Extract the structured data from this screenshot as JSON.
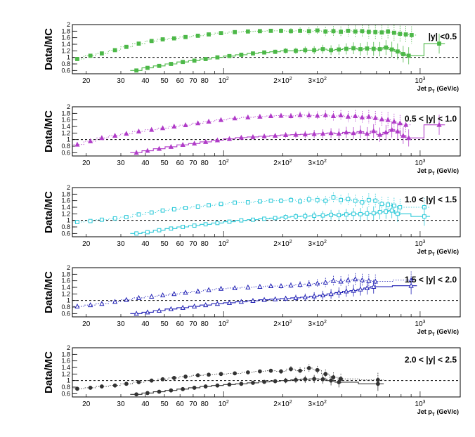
{
  "chart_data": [
    {
      "type": "scatter",
      "title": "|y| <0.5",
      "ylabel": "Data/MC",
      "xlabel": "Jet p",
      "xlabel_sub": "T",
      "xlabel_unit": "(GeV/c)",
      "xscale": "log",
      "xlim": [
        17,
        1600
      ],
      "ylim": [
        0.5,
        2.0
      ],
      "reference_line": 1.0,
      "color": "#4db848",
      "marker": "filled-square",
      "x_tick_labels": [
        "20",
        "30",
        "40",
        "50",
        "60",
        "70",
        "80",
        "10",
        "2",
        "2×10",
        "2",
        "3×10",
        "2",
        "10",
        "3"
      ],
      "y_tick_labels": [
        "0.6",
        "0.8",
        "1",
        "1.2",
        "1.4",
        "1.6",
        "1.8",
        "2"
      ],
      "series": [
        {
          "style": "dotted",
          "x": [
            18,
            21,
            24,
            28,
            32,
            37,
            43,
            49,
            56,
            64,
            74,
            84,
            97,
            114,
            133,
            153,
            174,
            196,
            220,
            245,
            272,
            300,
            330,
            362,
            395,
            430,
            468,
            507,
            548,
            592,
            638,
            686,
            737,
            790,
            846,
            905
          ],
          "y": [
            0.95,
            1.05,
            1.12,
            1.22,
            1.32,
            1.42,
            1.5,
            1.55,
            1.58,
            1.62,
            1.66,
            1.7,
            1.74,
            1.77,
            1.79,
            1.8,
            1.81,
            1.81,
            1.8,
            1.81,
            1.8,
            1.82,
            1.79,
            1.8,
            1.78,
            1.81,
            1.79,
            1.8,
            1.78,
            1.77,
            1.76,
            1.79,
            1.75,
            1.72,
            1.7,
            1.68
          ]
        },
        {
          "style": "solid",
          "x": [
            36,
            41,
            47,
            54,
            62,
            71,
            81,
            93,
            107,
            123,
            141,
            161,
            183,
            207,
            233,
            260,
            289,
            320,
            352,
            386,
            421,
            458,
            497,
            537,
            580,
            624,
            670,
            718,
            768,
            820,
            875,
            1250
          ],
          "y": [
            0.6,
            0.68,
            0.74,
            0.8,
            0.86,
            0.9,
            0.95,
            1.0,
            1.04,
            1.08,
            1.12,
            1.15,
            1.17,
            1.2,
            1.2,
            1.22,
            1.22,
            1.25,
            1.22,
            1.24,
            1.26,
            1.28,
            1.25,
            1.27,
            1.26,
            1.25,
            1.3,
            1.24,
            1.18,
            1.1,
            1.05,
            1.42
          ]
        }
      ]
    },
    {
      "type": "scatter",
      "title": "0.5 < |y| < 1.0",
      "ylabel": "Data/MC",
      "xlabel": "Jet p",
      "xlabel_sub": "T",
      "xlabel_unit": "(GeV/c)",
      "xscale": "log",
      "xlim": [
        17,
        1600
      ],
      "ylim": [
        0.5,
        2.0
      ],
      "reference_line": 1.0,
      "color": "#b03cc8",
      "marker": "filled-triangle",
      "x_tick_labels": [
        "20",
        "30",
        "40",
        "50",
        "60",
        "70",
        "80",
        "10",
        "2",
        "2×10",
        "2",
        "3×10",
        "2",
        "10",
        "3"
      ],
      "y_tick_labels": [
        "0.6",
        "0.8",
        "1",
        "1.2",
        "1.4",
        "1.6",
        "1.8",
        "2"
      ],
      "series": [
        {
          "style": "dotted",
          "x": [
            18,
            21,
            24,
            28,
            32,
            37,
            43,
            49,
            56,
            64,
            74,
            84,
            97,
            114,
            133,
            153,
            174,
            196,
            220,
            245,
            272,
            300,
            330,
            362,
            395,
            430,
            468,
            507,
            548,
            592,
            638,
            686,
            737,
            790,
            846
          ],
          "y": [
            0.85,
            0.95,
            1.05,
            1.12,
            1.18,
            1.25,
            1.3,
            1.35,
            1.4,
            1.44,
            1.5,
            1.55,
            1.6,
            1.65,
            1.68,
            1.7,
            1.72,
            1.73,
            1.72,
            1.75,
            1.74,
            1.73,
            1.75,
            1.72,
            1.74,
            1.7,
            1.72,
            1.68,
            1.7,
            1.66,
            1.62,
            1.6,
            1.55,
            1.5,
            1.45
          ]
        },
        {
          "style": "solid",
          "x": [
            36,
            41,
            47,
            54,
            62,
            71,
            81,
            93,
            107,
            123,
            141,
            161,
            183,
            207,
            233,
            260,
            289,
            320,
            352,
            386,
            421,
            458,
            497,
            537,
            580,
            624,
            670,
            718,
            768,
            820,
            875,
            1250
          ],
          "y": [
            0.6,
            0.66,
            0.72,
            0.78,
            0.84,
            0.88,
            0.93,
            0.98,
            1.02,
            1.06,
            1.08,
            1.1,
            1.12,
            1.14,
            1.15,
            1.16,
            1.17,
            1.18,
            1.2,
            1.18,
            1.22,
            1.2,
            1.24,
            1.18,
            1.26,
            1.15,
            1.22,
            1.3,
            1.25,
            1.12,
            1.05,
            1.45
          ]
        }
      ]
    },
    {
      "type": "scatter",
      "title": "1.0 < |y| < 1.5",
      "ylabel": "Data/MC",
      "xlabel": "Jet p",
      "xlabel_sub": "T",
      "xlabel_unit": "(GeV/c)",
      "xscale": "log",
      "xlim": [
        17,
        1600
      ],
      "ylim": [
        0.5,
        2.0
      ],
      "reference_line": 1.0,
      "color": "#28c8d8",
      "marker": "open-square",
      "x_tick_labels": [
        "20",
        "30",
        "40",
        "50",
        "60",
        "70",
        "80",
        "10",
        "2",
        "2×10",
        "2",
        "3×10",
        "2",
        "10",
        "3"
      ],
      "y_tick_labels": [
        "0.6",
        "0.8",
        "1",
        "1.2",
        "1.4",
        "1.6",
        "1.8",
        "2"
      ],
      "series": [
        {
          "style": "dotted",
          "x": [
            18,
            21,
            24,
            28,
            32,
            37,
            43,
            49,
            56,
            64,
            74,
            84,
            97,
            114,
            133,
            153,
            174,
            196,
            220,
            245,
            272,
            300,
            330,
            362,
            395,
            430,
            468,
            507,
            548,
            592,
            638,
            686,
            737,
            790,
            1050
          ],
          "y": [
            0.95,
            0.98,
            1.02,
            1.06,
            1.1,
            1.18,
            1.24,
            1.3,
            1.34,
            1.38,
            1.42,
            1.46,
            1.5,
            1.54,
            1.55,
            1.58,
            1.6,
            1.6,
            1.62,
            1.58,
            1.64,
            1.62,
            1.6,
            1.7,
            1.62,
            1.65,
            1.6,
            1.55,
            1.62,
            1.6,
            1.5,
            1.48,
            1.45,
            1.4,
            1.4
          ]
        },
        {
          "style": "solid",
          "x": [
            36,
            41,
            47,
            54,
            62,
            71,
            81,
            93,
            107,
            123,
            141,
            161,
            183,
            207,
            233,
            260,
            289,
            320,
            352,
            386,
            421,
            458,
            497,
            537,
            580,
            624,
            670,
            718,
            768,
            1050
          ],
          "y": [
            0.6,
            0.64,
            0.7,
            0.75,
            0.8,
            0.84,
            0.88,
            0.92,
            0.96,
            1.0,
            1.02,
            1.05,
            1.07,
            1.1,
            1.12,
            1.13,
            1.14,
            1.15,
            1.17,
            1.16,
            1.18,
            1.2,
            1.19,
            1.21,
            1.22,
            1.25,
            1.27,
            1.3,
            1.2,
            1.12
          ]
        }
      ]
    },
    {
      "type": "scatter",
      "title": "1.5 < |y| < 2.0",
      "ylabel": "Data/MC",
      "xlabel": "Jet p",
      "xlabel_sub": "T",
      "xlabel_unit": "(GeV/c)",
      "xscale": "log",
      "xlim": [
        17,
        1600
      ],
      "ylim": [
        0.5,
        2.0
      ],
      "reference_line": 1.0,
      "color": "#1f1fb4",
      "marker": "open-triangle",
      "x_tick_labels": [
        "20",
        "30",
        "40",
        "50",
        "60",
        "70",
        "80",
        "10",
        "2",
        "2×10",
        "2",
        "3×10",
        "2",
        "10",
        "3"
      ],
      "y_tick_labels": [
        "0.6",
        "0.8",
        "1",
        "1.2",
        "1.4",
        "1.6",
        "1.8",
        "2"
      ],
      "series": [
        {
          "style": "dotted",
          "x": [
            18,
            21,
            24,
            28,
            32,
            37,
            43,
            49,
            56,
            64,
            74,
            84,
            97,
            114,
            133,
            153,
            174,
            196,
            220,
            245,
            272,
            300,
            330,
            362,
            395,
            430,
            468,
            507,
            548,
            592,
            900
          ],
          "y": [
            0.82,
            0.86,
            0.9,
            0.96,
            1.02,
            1.08,
            1.12,
            1.16,
            1.2,
            1.24,
            1.28,
            1.32,
            1.36,
            1.38,
            1.4,
            1.42,
            1.44,
            1.44,
            1.46,
            1.48,
            1.5,
            1.52,
            1.55,
            1.6,
            1.58,
            1.62,
            1.65,
            1.62,
            1.6,
            1.58,
            1.62
          ]
        },
        {
          "style": "solid",
          "x": [
            36,
            41,
            47,
            54,
            62,
            71,
            81,
            93,
            107,
            123,
            141,
            161,
            183,
            207,
            233,
            260,
            289,
            320,
            352,
            386,
            421,
            458,
            497,
            537,
            580,
            900
          ],
          "y": [
            0.6,
            0.64,
            0.69,
            0.74,
            0.78,
            0.82,
            0.86,
            0.9,
            0.93,
            0.96,
            0.99,
            1.02,
            1.04,
            1.06,
            1.08,
            1.1,
            1.13,
            1.16,
            1.2,
            1.24,
            1.28,
            1.3,
            1.34,
            1.38,
            1.42,
            1.45
          ]
        }
      ]
    },
    {
      "type": "scatter",
      "title": "2.0 < |y| < 2.5",
      "ylabel": "Data/MC",
      "xlabel": "Jet p",
      "xlabel_sub": "T",
      "xlabel_unit": "(GeV/c)",
      "xscale": "log",
      "xlim": [
        17,
        1600
      ],
      "ylim": [
        0.5,
        2.0
      ],
      "reference_line": 1.0,
      "color": "#333333",
      "marker": "filled-circle",
      "x_tick_labels": [
        "20",
        "30",
        "40",
        "50",
        "60",
        "70",
        "80",
        "10",
        "2",
        "2×10",
        "2",
        "3×10",
        "2",
        "10",
        "3"
      ],
      "y_tick_labels": [
        "0.6",
        "0.8",
        "1",
        "1.2",
        "1.4",
        "1.6",
        "1.8",
        "2"
      ],
      "series": [
        {
          "style": "dotted",
          "x": [
            18,
            21,
            24,
            28,
            32,
            37,
            43,
            49,
            56,
            64,
            74,
            84,
            97,
            114,
            133,
            153,
            174,
            196,
            220,
            245,
            272,
            300,
            330,
            362,
            395,
            610
          ],
          "y": [
            0.75,
            0.78,
            0.82,
            0.85,
            0.9,
            0.95,
            1.0,
            1.04,
            1.08,
            1.12,
            1.16,
            1.18,
            1.2,
            1.22,
            1.25,
            1.28,
            1.3,
            1.28,
            1.35,
            1.3,
            1.38,
            1.32,
            1.2,
            1.1,
            1.05,
            1.02
          ]
        },
        {
          "style": "solid",
          "x": [
            36,
            41,
            47,
            54,
            62,
            71,
            81,
            93,
            107,
            123,
            141,
            161,
            183,
            207,
            233,
            260,
            289,
            320,
            352,
            386,
            610
          ],
          "y": [
            0.58,
            0.62,
            0.66,
            0.7,
            0.74,
            0.78,
            0.82,
            0.85,
            0.88,
            0.9,
            0.93,
            0.96,
            0.98,
            1.0,
            1.02,
            1.04,
            1.05,
            1.04,
            1.0,
            0.95,
            0.9
          ]
        }
      ]
    }
  ]
}
